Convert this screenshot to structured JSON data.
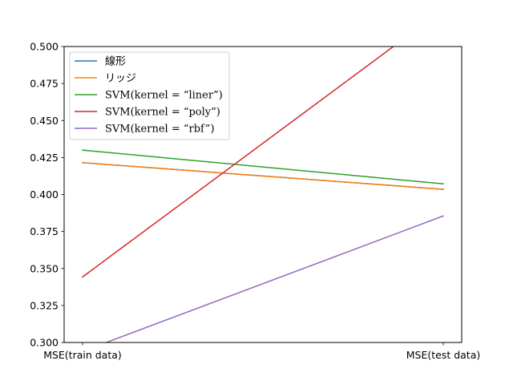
{
  "chart_data": {
    "type": "line",
    "categories": [
      "MSE(train data)",
      "MSE(test data)"
    ],
    "ylim": [
      0.3,
      0.5
    ],
    "yticks": [
      "0.300",
      "0.325",
      "0.350",
      "0.375",
      "0.400",
      "0.425",
      "0.450",
      "0.475",
      "0.500"
    ],
    "ytick_values": [
      0.3,
      0.325,
      0.35,
      0.375,
      0.4,
      0.425,
      0.45,
      0.475,
      0.5
    ],
    "grid": false,
    "legend_position": "top-left",
    "series": [
      {
        "name": "線形",
        "color": "#1f77b4",
        "values": [
          0.4215,
          0.4035
        ]
      },
      {
        "name": "リッジ",
        "color": "#ff7f0e",
        "values": [
          0.4215,
          0.4035
        ]
      },
      {
        "name": "SVM(kernel = “liner”)",
        "color": "#2ca02c",
        "values": [
          0.43,
          0.4072
        ]
      },
      {
        "name": "SVM(kernel = “poly”)",
        "color": "#d62728",
        "values": [
          0.3443,
          0.525
        ]
      },
      {
        "name": "SVM(kernel = “rbf”)",
        "color": "#9467bd",
        "values": [
          0.294,
          0.3855
        ]
      }
    ]
  }
}
